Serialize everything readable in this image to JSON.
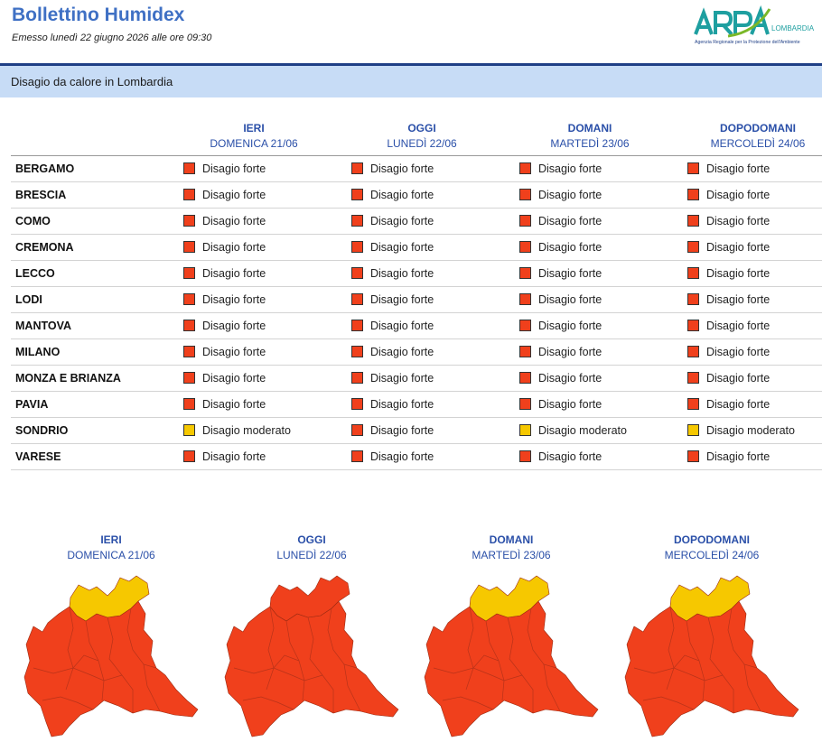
{
  "header": {
    "title": "Bollettino Humidex",
    "issued": "Emesso lunedì 22 giugno 2026 alle ore 09:30",
    "logo": {
      "name": "ARPA",
      "region": "LOMBARDIA",
      "subtitle": "Agenzia Regionale per la Protezione dell'Ambiente"
    }
  },
  "banner": {
    "text": "Disagio da calore in Lombardia"
  },
  "colors": {
    "forte": "#f0401c",
    "moderato": "#f6c800",
    "heading": "#3f70c4",
    "banner": "#c7dcf6"
  },
  "table": {
    "days": [
      {
        "name": "IERI",
        "date": "DOMENICA 21/06"
      },
      {
        "name": "OGGI",
        "date": "LUNEDÌ 22/06"
      },
      {
        "name": "DOMANI",
        "date": "MARTEDÌ 23/06"
      },
      {
        "name": "DOPODOMANI",
        "date": "MERCOLEDÌ 24/06"
      }
    ],
    "rows": [
      {
        "province": "BERGAMO",
        "levels": [
          "forte",
          "forte",
          "forte",
          "forte"
        ]
      },
      {
        "province": "BRESCIA",
        "levels": [
          "forte",
          "forte",
          "forte",
          "forte"
        ]
      },
      {
        "province": "COMO",
        "levels": [
          "forte",
          "forte",
          "forte",
          "forte"
        ]
      },
      {
        "province": "CREMONA",
        "levels": [
          "forte",
          "forte",
          "forte",
          "forte"
        ]
      },
      {
        "province": "LECCO",
        "levels": [
          "forte",
          "forte",
          "forte",
          "forte"
        ]
      },
      {
        "province": "LODI",
        "levels": [
          "forte",
          "forte",
          "forte",
          "forte"
        ]
      },
      {
        "province": "MANTOVA",
        "levels": [
          "forte",
          "forte",
          "forte",
          "forte"
        ]
      },
      {
        "province": "MILANO",
        "levels": [
          "forte",
          "forte",
          "forte",
          "forte"
        ]
      },
      {
        "province": "MONZA E BRIANZA",
        "levels": [
          "forte",
          "forte",
          "forte",
          "forte"
        ]
      },
      {
        "province": "PAVIA",
        "levels": [
          "forte",
          "forte",
          "forte",
          "forte"
        ]
      },
      {
        "province": "SONDRIO",
        "levels": [
          "moderato",
          "forte",
          "moderato",
          "moderato"
        ]
      },
      {
        "province": "VARESE",
        "levels": [
          "forte",
          "forte",
          "forte",
          "forte"
        ]
      }
    ],
    "level_labels": {
      "forte": "Disagio forte",
      "moderato": "Disagio moderato"
    }
  },
  "maps": [
    {
      "name": "IERI",
      "date": "DOMENICA 21/06",
      "sondrio": "moderato"
    },
    {
      "name": "OGGI",
      "date": "LUNEDÌ 22/06",
      "sondrio": "forte"
    },
    {
      "name": "DOMANI",
      "date": "MARTEDÌ 23/06",
      "sondrio": "moderato"
    },
    {
      "name": "DOPODOMANI",
      "date": "MERCOLEDÌ 24/06",
      "sondrio": "moderato"
    }
  ]
}
